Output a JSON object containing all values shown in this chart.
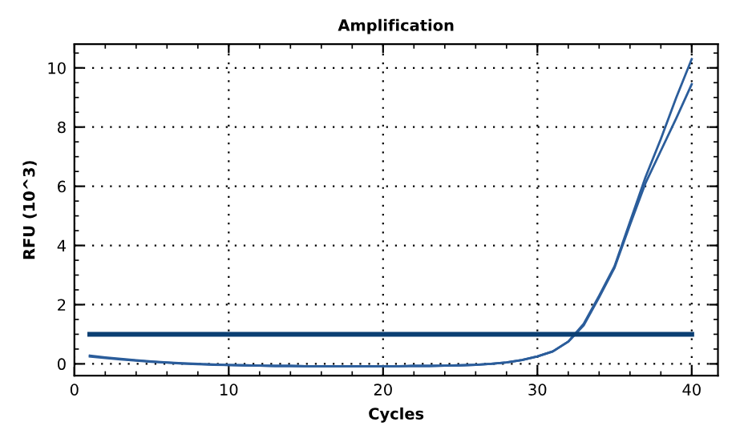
{
  "chart_data": {
    "type": "line",
    "title": "Amplification",
    "xlabel": "Cycles",
    "ylabel": "RFU (10^3)",
    "x": [
      1,
      2,
      3,
      4,
      5,
      6,
      7,
      8,
      9,
      10,
      11,
      12,
      13,
      14,
      15,
      16,
      17,
      18,
      19,
      20,
      21,
      22,
      23,
      24,
      25,
      26,
      27,
      28,
      29,
      30,
      31,
      32,
      33,
      34,
      35,
      36,
      37,
      38,
      39,
      40
    ],
    "series": [
      {
        "color": "#2b5d9b",
        "values": [
          0.28,
          0.22,
          0.17,
          0.12,
          0.08,
          0.05,
          0.02,
          0.0,
          -0.02,
          -0.04,
          -0.05,
          -0.06,
          -0.07,
          -0.07,
          -0.08,
          -0.08,
          -0.08,
          -0.08,
          -0.08,
          -0.08,
          -0.08,
          -0.07,
          -0.07,
          -0.06,
          -0.05,
          -0.03,
          0.0,
          0.05,
          0.13,
          0.25,
          0.42,
          0.75,
          1.35,
          2.3,
          3.3,
          4.8,
          6.3,
          7.6,
          9.0,
          10.3
        ]
      },
      {
        "color": "#2b5d9b",
        "values": [
          0.25,
          0.2,
          0.15,
          0.11,
          0.07,
          0.04,
          0.01,
          -0.01,
          -0.03,
          -0.04,
          -0.05,
          -0.06,
          -0.07,
          -0.07,
          -0.08,
          -0.08,
          -0.08,
          -0.08,
          -0.08,
          -0.08,
          -0.08,
          -0.07,
          -0.07,
          -0.06,
          -0.05,
          -0.03,
          0.0,
          0.05,
          0.13,
          0.25,
          0.42,
          0.75,
          1.3,
          2.25,
          3.25,
          4.7,
          6.1,
          7.2,
          8.3,
          9.45
        ]
      },
      {
        "color": "#0b3f73",
        "x": [
          1,
          40
        ],
        "values": [
          1.0,
          1.0
        ]
      }
    ],
    "xlim": [
      0,
      41.7
    ],
    "ylim": [
      -0.4,
      10.8
    ],
    "xticks": [
      0,
      10,
      20,
      30,
      40
    ],
    "yticks": [
      0,
      2,
      4,
      6,
      8,
      10
    ],
    "grid": true,
    "line_style": "solid",
    "marker": "none"
  }
}
